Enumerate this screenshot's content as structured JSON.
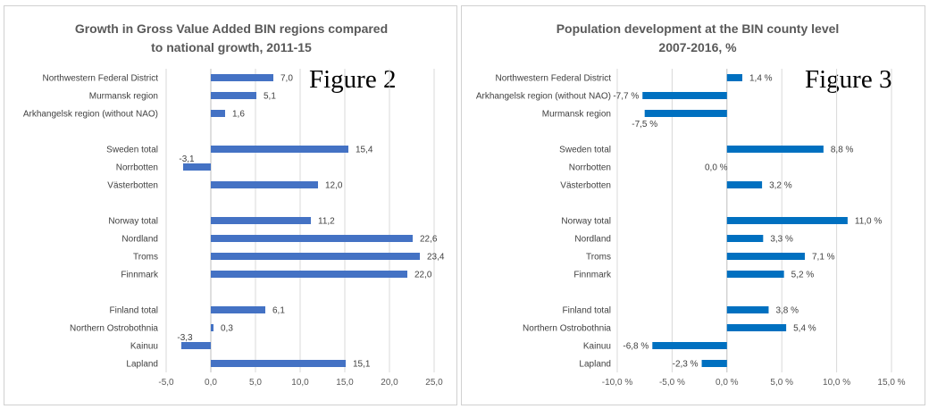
{
  "figure2": {
    "title_line1": "Growth in Gross Value Added BIN regions compared",
    "title_line2": "to national growth, 2011-15",
    "figure_label": "Figure  2"
  },
  "figure3": {
    "title_line1": "Population development at the BIN county level",
    "title_line2": "2007-2016, %",
    "figure_label": "Figure 3"
  },
  "chart_data": [
    {
      "type": "bar",
      "orientation": "horizontal",
      "title": "Growth in Gross Value Added BIN regions compared to national growth, 2011-15",
      "color": "#4472c4",
      "categories": [
        "Northwestern Federal District",
        "Murmansk region",
        "Arkhangelsk region (without NAO)",
        "",
        "Sweden total",
        "Norrbotten",
        "Västerbotten",
        "",
        "Norway total",
        "Nordland",
        "Troms",
        "Finnmark",
        "",
        "Finland total",
        "Northern Ostrobothnia",
        "Kainuu",
        "Lapland"
      ],
      "values": [
        7.0,
        5.1,
        1.6,
        null,
        15.4,
        -3.1,
        12.0,
        null,
        11.2,
        22.6,
        23.4,
        22.0,
        null,
        6.1,
        0.3,
        -3.3,
        15.1
      ],
      "value_labels": [
        "7,0",
        "5,1",
        "1,6",
        "",
        "15,4",
        "-3,1",
        "12,0",
        "",
        "11,2",
        "22,6",
        "23,4",
        "22,0",
        "",
        "6,1",
        "0,3",
        "-3,3",
        "15,1"
      ],
      "xlim": [
        -5,
        25
      ],
      "ticks": [
        -5,
        0,
        5,
        10,
        15,
        20,
        25
      ],
      "tick_labels": [
        "-5,0",
        "0,0",
        "5,0",
        "10,0",
        "15,0",
        "20,0",
        "25,0"
      ],
      "grid": true,
      "legend": "none"
    },
    {
      "type": "bar",
      "orientation": "horizontal",
      "title": "Population development at the BIN county level 2007-2016, %",
      "color": "#0070c0",
      "categories": [
        "Northwestern Federal District",
        "Arkhangelsk region (without NAO)",
        "Murmansk region",
        "",
        "Sweden total",
        "Norrbotten",
        "Västerbotten",
        "",
        "Norway total",
        "Nordland",
        "Troms",
        "Finnmark",
        "",
        "Finland total",
        "Northern Ostrobothnia",
        "Kainuu",
        "Lapland"
      ],
      "values": [
        1.4,
        -7.7,
        -7.5,
        null,
        8.8,
        0.0,
        3.2,
        null,
        11.0,
        3.3,
        7.1,
        5.2,
        null,
        3.8,
        5.4,
        -6.8,
        -2.3
      ],
      "value_labels": [
        "1,4 %",
        "-7,7 %",
        "-7,5 %",
        "",
        "8,8 %",
        "0,0 %",
        "3,2 %",
        "",
        "11,0 %",
        "3,3 %",
        "7,1 %",
        "5,2 %",
        "",
        "3,8 %",
        "5,4 %",
        "-6,8 %",
        "-2,3 %"
      ],
      "xlim": [
        -10,
        15
      ],
      "ticks": [
        -10,
        -5,
        0,
        5,
        10,
        15
      ],
      "tick_labels": [
        "-10,0 %",
        "-5,0 %",
        "0,0 %",
        "5,0 %",
        "10,0 %",
        "15,0 %"
      ],
      "grid": true,
      "legend": "none"
    }
  ]
}
